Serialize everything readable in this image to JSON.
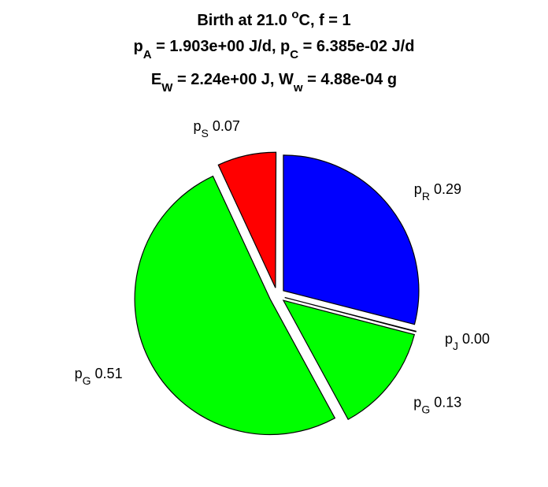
{
  "figure": {
    "background": "#ffffff",
    "title_lines": [
      [
        {
          "t": "Birth at 21.0 "
        },
        {
          "t": "o",
          "sup": true
        },
        {
          "t": "C, f = 1"
        }
      ],
      [
        {
          "t": "p"
        },
        {
          "t": "A",
          "sub": true
        },
        {
          "t": " = 1.903e+00 J/d, p"
        },
        {
          "t": "C",
          "sub": true
        },
        {
          "t": " = 6.385e-02 J/d"
        }
      ],
      [
        {
          "t": "E"
        },
        {
          "t": "W",
          "sub": true
        },
        {
          "t": " = 2.24e+00 J, W"
        },
        {
          "t": "w",
          "sub": true
        },
        {
          "t": " = 4.88e-04 g"
        }
      ]
    ]
  },
  "chart_data": {
    "type": "pie",
    "exploded": true,
    "start": "top",
    "direction": "clockwise",
    "slices": [
      {
        "symbol": "p",
        "subscript": "R",
        "value": 0.29,
        "value_label": "0.29",
        "color": "#0000ff"
      },
      {
        "symbol": "p",
        "subscript": "J",
        "value": 0.0,
        "value_label": "0.00",
        "color": "#ffffff"
      },
      {
        "symbol": "p",
        "subscript": "G",
        "value": 0.13,
        "value_label": "0.13",
        "color": "#00ff00"
      },
      {
        "symbol": "p",
        "subscript": "G",
        "value": 0.51,
        "value_label": "0.51",
        "color": "#00ff00"
      },
      {
        "symbol": "p",
        "subscript": "S",
        "value": 0.07,
        "value_label": "0.07",
        "color": "#ff0000"
      }
    ]
  }
}
